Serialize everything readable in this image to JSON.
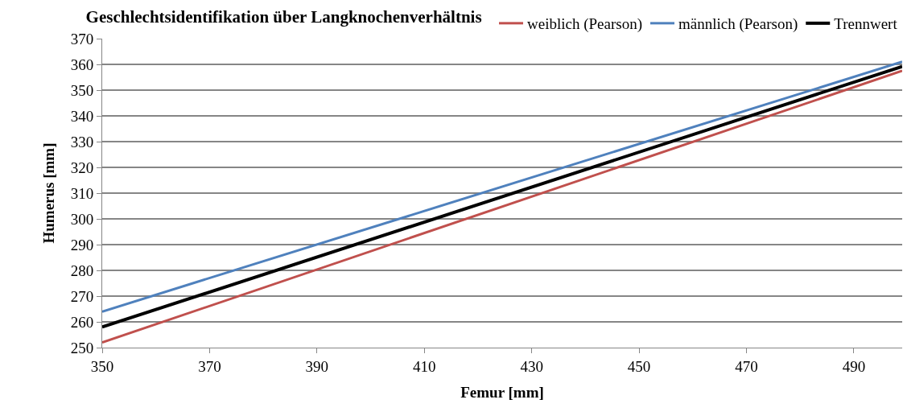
{
  "chart_data": {
    "type": "line",
    "title": "Geschlechtsidentifikation über Langknochenverhältnis",
    "xlabel": "Femur [mm]",
    "ylabel": "Humerus [mm]",
    "x": [
      350,
      499
    ],
    "series": [
      {
        "name": "weiblich (Pearson)",
        "color": "#c0504d",
        "values": [
          252,
          357.5
        ]
      },
      {
        "name": "männlich (Pearson)",
        "color": "#4f81bd",
        "values": [
          264,
          361
        ]
      },
      {
        "name": "Trennwert",
        "color": "#000000",
        "values": [
          258,
          359.2
        ]
      }
    ],
    "xlim": [
      350,
      499
    ],
    "xticks": [
      350,
      370,
      390,
      410,
      430,
      450,
      470,
      490
    ],
    "ylim": [
      250,
      370
    ],
    "yticks": [
      250,
      260,
      270,
      280,
      290,
      300,
      310,
      320,
      330,
      340,
      350,
      360,
      370
    ],
    "grid": "y",
    "legend": "top right",
    "marker": "none",
    "line_style": "solid"
  }
}
